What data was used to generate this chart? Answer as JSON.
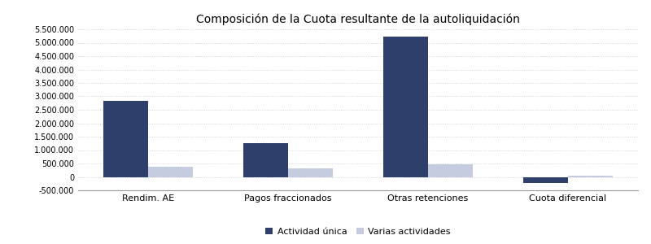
{
  "title": "Composición de la Cuota resultante de la autoliquidación",
  "categories": [
    "Rendim. AE",
    "Pagos fraccionados",
    "Otras retenciones",
    "Cuota diferencial"
  ],
  "actividad_unica": [
    2830000,
    1260000,
    5230000,
    -230000
  ],
  "varias_actividades": [
    380000,
    310000,
    480000,
    50000
  ],
  "color_unica": "#2e3f6b",
  "color_varias": "#c5cce0",
  "ylim": [
    -500000,
    5500000
  ],
  "yticks": [
    -500000,
    0,
    500000,
    1000000,
    1500000,
    2000000,
    2500000,
    3000000,
    3500000,
    4000000,
    4500000,
    5000000,
    5500000
  ],
  "legend_labels": [
    "Actividad única",
    "Varias actividades"
  ],
  "bar_width": 0.32,
  "background_color": "#ffffff",
  "grid_color": "#cccccc",
  "title_fontsize": 10,
  "tick_fontsize": 7,
  "xlabel_fontsize": 8
}
